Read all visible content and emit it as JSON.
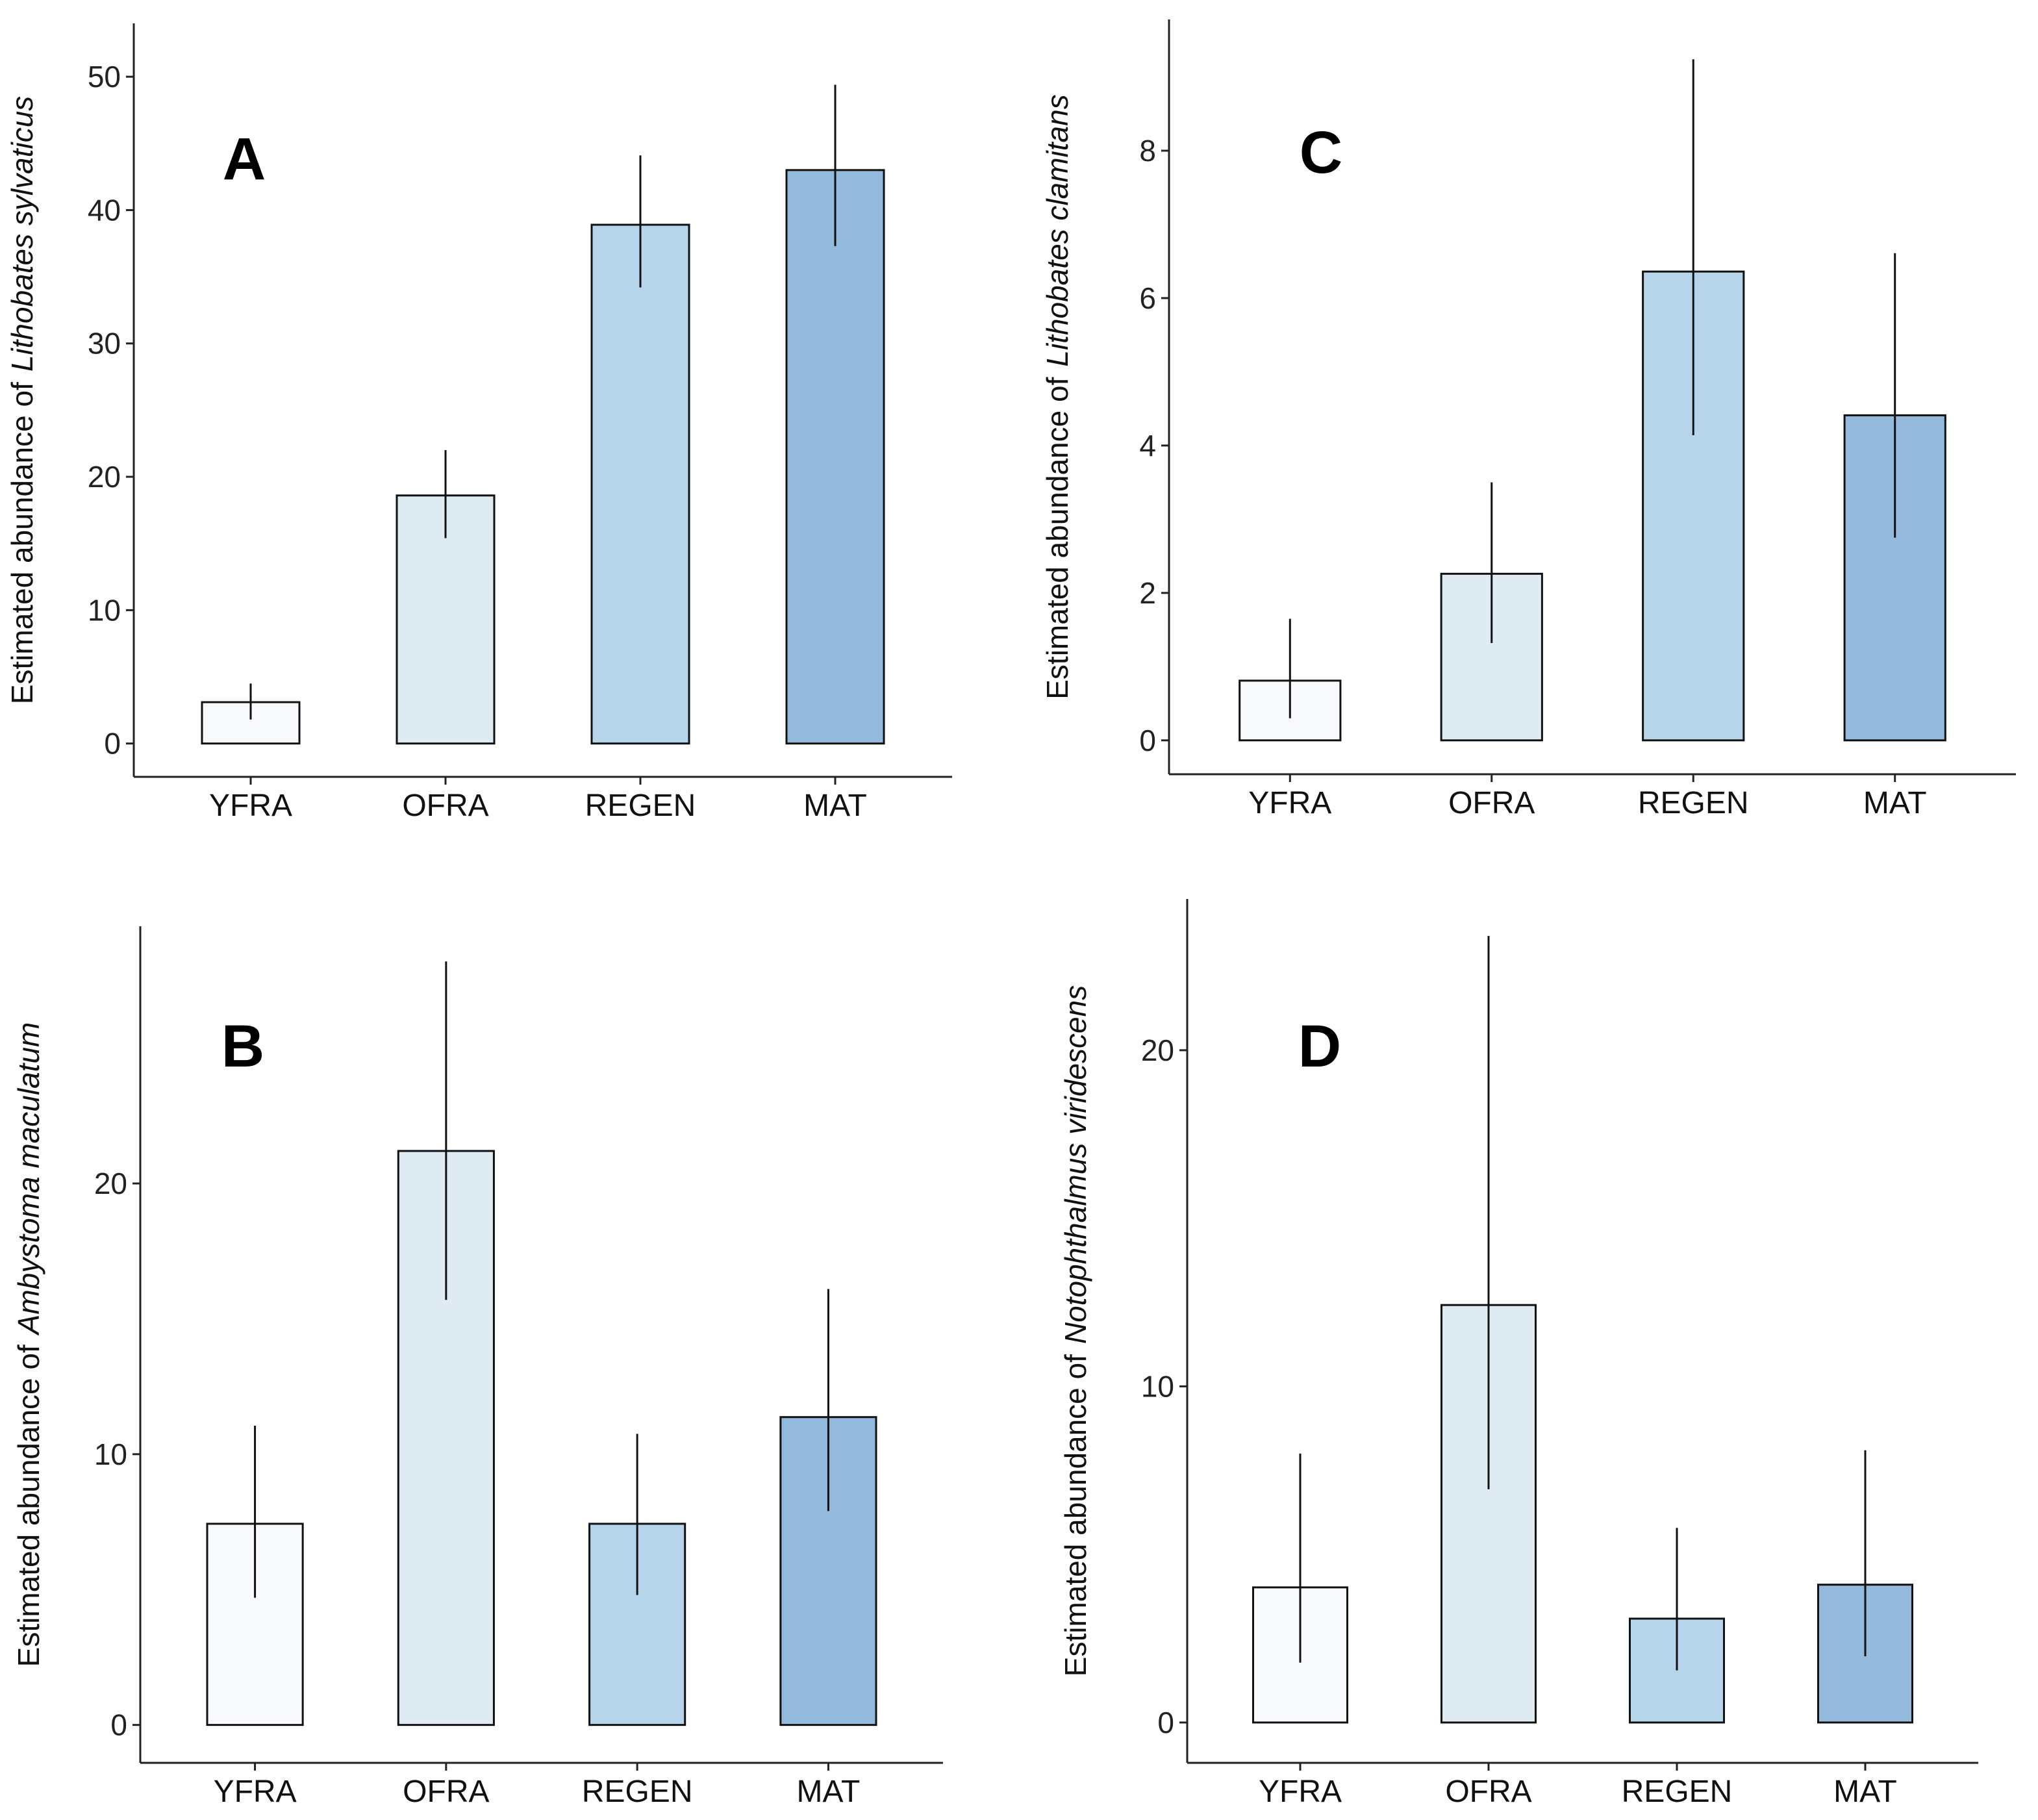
{
  "chart_data": [
    {
      "type": "bar",
      "annotation": "A",
      "ylabel": "Estimated abundance of",
      "ylabel_italic": "Lithobates sylvaticus",
      "categories": [
        "YFRA",
        "OFRA",
        "REGEN",
        "MAT"
      ],
      "values": [
        3.1,
        18.6,
        38.9,
        43.0
      ],
      "lower": [
        1.8,
        15.4,
        34.2,
        37.3
      ],
      "upper": [
        4.5,
        22.0,
        44.1,
        49.4
      ],
      "colors": [
        "#f7f9fd",
        "#deebf3",
        "#b6d5ea",
        "#93b9dc"
      ],
      "ylim": [
        -2.5,
        54
      ],
      "yticks": [
        0,
        10,
        20,
        30,
        40,
        50
      ]
    },
    {
      "type": "bar",
      "annotation": "C",
      "ylabel": "Estimated abundance of",
      "ylabel_italic": "Lithobates clamitans",
      "categories": [
        "YFRA",
        "OFRA",
        "REGEN",
        "MAT"
      ],
      "values": [
        0.81,
        2.26,
        6.36,
        4.41
      ],
      "lower": [
        0.3,
        1.32,
        4.14,
        2.75
      ],
      "upper": [
        1.65,
        3.5,
        9.24,
        6.61
      ],
      "colors": [
        "#f7f9fd",
        "#deebf3",
        "#b6d5ea",
        "#93b9dc"
      ],
      "ylim": [
        -0.46,
        9.78
      ],
      "yticks": [
        0,
        2,
        4,
        6,
        8
      ]
    },
    {
      "type": "bar",
      "annotation": "B",
      "ylabel": "Estimated abundance of",
      "ylabel_italic": "Ambystoma maculatum",
      "categories": [
        "YFRA",
        "OFRA",
        "REGEN",
        "MAT"
      ],
      "values": [
        7.43,
        21.2,
        7.43,
        11.37
      ],
      "lower": [
        4.7,
        15.7,
        4.8,
        7.9
      ],
      "upper": [
        11.05,
        28.2,
        10.75,
        16.1
      ],
      "colors": [
        "#f7f9fd",
        "#deebf3",
        "#b6d5ea",
        "#93b9dc"
      ],
      "ylim": [
        -1.4,
        29.5
      ],
      "yticks": [
        0,
        10,
        20
      ]
    },
    {
      "type": "bar",
      "annotation": "D",
      "ylabel": "Estimated abundance of",
      "ylabel_italic": "Notophthalmus viridescens",
      "categories": [
        "YFRA",
        "OFRA",
        "REGEN",
        "MAT"
      ],
      "values": [
        4.02,
        12.42,
        3.09,
        4.1
      ],
      "lower": [
        1.78,
        6.94,
        1.55,
        1.97
      ],
      "upper": [
        8.0,
        23.4,
        5.79,
        8.1
      ],
      "colors": [
        "#f7f9fd",
        "#deebf3",
        "#b6d5ea",
        "#93b9dc"
      ],
      "ylim": [
        -1.2,
        24.5
      ],
      "yticks": [
        0,
        10,
        20
      ]
    }
  ]
}
